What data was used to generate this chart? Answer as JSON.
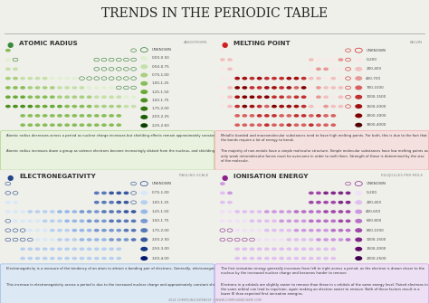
{
  "title": "TRENDS IN THE PERIODIC TABLE",
  "bg_color": "#f0f0eb",
  "title_color": "#222222",
  "footer": "2014 COMPOUND INTEREST • WWW.COMPOUNDCHEM.COM",
  "sections": [
    {
      "name": "ATOMIC RADIUS",
      "unit": "ANGSTROMS",
      "bg_color": "#e8f2df",
      "dot_color_dark": "#2d7a2d",
      "dot_color_light": "#b8d898",
      "text_color": "#3a8a3a",
      "legend_labels": [
        "UNKNOWN",
        "0.00-0.50",
        "0.50-0.75",
        "0.75-1.00",
        "1.00-1.25",
        "1.25-1.50",
        "1.50-1.75",
        "1.75-2.00",
        "2.00-2.25",
        "2.25-2.60"
      ],
      "legend_colors": [
        "#ffffff",
        "#e0f0d0",
        "#c5e0a8",
        "#a8d080",
        "#88be58",
        "#6aaa38",
        "#4e9020",
        "#347810",
        "#1e5e08",
        "#0a4000"
      ],
      "description1": "Atomic radius decreases across a period as nuclear charge increases but shielding effects remain approximately constant, resulting in electrons being drawn closer to the nucleus.",
      "description2": "Atomic radius increases down a group as valence electrons become increasingly distant from the nucleus, and shielding also increases. This leads to a increase in atomic radius despite the increasing nuclear charge down a group."
    },
    {
      "name": "MELTING POINT",
      "unit": "KELVIN",
      "bg_color": "#f5e0e0",
      "dot_color_dark": "#cc2222",
      "dot_color_light": "#f0b0b0",
      "text_color": "#cc2222",
      "legend_labels": [
        "UNKNOWN",
        "0-200",
        "200-400",
        "400-700",
        "700-1000",
        "1000-1500",
        "1500-2000",
        "2000-3000",
        "3000-4000"
      ],
      "legend_colors": [
        "#ffffff",
        "#fae8e8",
        "#f2c0c0",
        "#e89898",
        "#d86060",
        "#c03030",
        "#a01010",
        "#800000",
        "#500000"
      ],
      "description1": "Metallic bonded and macromolecular substances tend to have high melting points. For both, this is due to the fact that the bonds require a lot of energy to break.",
      "description2": "The majority of non-metals have a simple molecular structure. Simple molecular substances have low melting points as only weak intermolecular forces must be overcome in order to melt them. Strength of these is determined by the size of the molecule."
    },
    {
      "name": "ELECTRONEGATIVITY",
      "unit": "PAULING SCALE",
      "bg_color": "#dde8f5",
      "dot_color_dark": "#224488",
      "dot_color_light": "#a8c0e8",
      "text_color": "#224488",
      "legend_labels": [
        "UNKNOWN",
        "0.75-1.00",
        "1.00-1.25",
        "1.25-1.50",
        "1.50-1.75",
        "1.75-2.00",
        "2.00-2.50",
        "2.50-3.00",
        "3.00-4.00"
      ],
      "legend_colors": [
        "#ffffff",
        "#d8e8f8",
        "#b8d0f0",
        "#98b8e8",
        "#7898d0",
        "#5878b8",
        "#3858a0",
        "#183888",
        "#001870"
      ],
      "description1": "Electronegativity is a measure of the tendency of an atom to attract a bonding pair of electrons. Generally, electronegativity increases moving towards the top-right of the Periodic Table.",
      "description2": "This increase in electronegativity across a period is due to the increased nuclear charge and approximately constant shielding effects resulting in a greater force of attraction to the nucleus of the atom felt by the bonding electrons."
    },
    {
      "name": "IONISATION ENERGY",
      "unit": "KILOJOULES PER MOLE",
      "bg_color": "#ede0f5",
      "dot_color_dark": "#882288",
      "dot_color_light": "#d8a8e8",
      "text_color": "#882288",
      "legend_labels": [
        "UNKNOWN",
        "0-200",
        "200-400",
        "400-600",
        "600-800",
        "800-1000",
        "1000-1500",
        "1500-2000",
        "2000-2500"
      ],
      "legend_colors": [
        "#ffffff",
        "#f0e0f8",
        "#e0c0f0",
        "#cc98e0",
        "#b870c8",
        "#a048a8",
        "#802888",
        "#600868",
        "#400050"
      ],
      "description1": "The first ionisation energy generally increases from left to right across a period, as the electron is drawn closer to the nucleus by the increased nuclear charge and becomes harder to remove.",
      "description2": "Electrons in p orbitals are slightly easier to remove than those in s orbitals of the same energy level. Paired electrons in the same orbital can lead to repulsion, again making an electron easier to remove. Both of these factors result in a lower IE than expected first ionisation energies."
    }
  ],
  "pt_grid": [
    [
      1,
      0,
      0,
      0,
      0,
      0,
      0,
      0,
      0,
      0,
      0,
      0,
      0,
      0,
      0,
      0,
      0,
      1
    ],
    [
      1,
      1,
      0,
      0,
      0,
      0,
      0,
      0,
      0,
      0,
      0,
      0,
      1,
      1,
      1,
      1,
      1,
      1
    ],
    [
      1,
      1,
      0,
      0,
      0,
      0,
      0,
      0,
      0,
      0,
      0,
      0,
      1,
      1,
      1,
      1,
      1,
      1
    ],
    [
      1,
      1,
      1,
      1,
      1,
      1,
      1,
      1,
      1,
      1,
      1,
      1,
      1,
      1,
      1,
      1,
      1,
      1
    ],
    [
      1,
      1,
      1,
      1,
      1,
      1,
      1,
      1,
      1,
      1,
      1,
      1,
      1,
      1,
      1,
      1,
      1,
      1
    ],
    [
      1,
      1,
      1,
      1,
      1,
      1,
      1,
      1,
      1,
      1,
      1,
      1,
      1,
      1,
      1,
      1,
      1,
      1
    ],
    [
      1,
      1,
      1,
      1,
      1,
      1,
      1,
      1,
      1,
      1,
      1,
      1,
      1,
      1,
      1,
      1,
      1,
      1
    ],
    [
      0,
      0,
      1,
      1,
      1,
      1,
      1,
      1,
      1,
      1,
      1,
      1,
      1,
      1,
      1,
      1,
      0,
      0
    ],
    [
      0,
      0,
      1,
      1,
      1,
      1,
      1,
      1,
      1,
      1,
      1,
      1,
      1,
      1,
      1,
      1,
      0,
      0
    ]
  ]
}
